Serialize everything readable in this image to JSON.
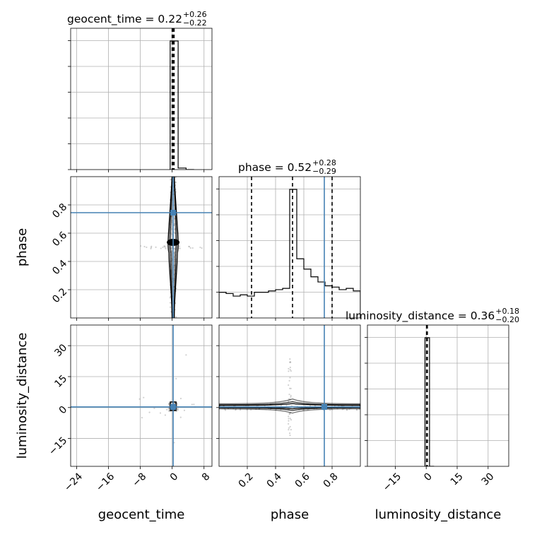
{
  "chart_data": {
    "type": "scatter",
    "style": {
      "grid": true,
      "truth_color": "#4682b4",
      "hist_color": "#000000",
      "sample_color": "#9a9a9a"
    },
    "parameters": [
      "geocent_time",
      "phase",
      "luminosity_distance"
    ],
    "axis_labels": [
      "geocent_time",
      "phase",
      "luminosity_distance"
    ],
    "ranges": [
      [
        -25.5,
        10
      ],
      [
        0.0,
        1.0
      ],
      [
        -28.5,
        40
      ]
    ],
    "truths": [
      0.25,
      0.745,
      0.3
    ],
    "ticks": {
      "geocent_time": [
        -24,
        -16,
        -8,
        0,
        8
      ],
      "phase": [
        0.2,
        0.4,
        0.6,
        0.8
      ],
      "luminosity_distance": [
        -15,
        0,
        15,
        30
      ]
    },
    "tick_labels": {
      "geocent_time": [
        "−24",
        "−16",
        "−8",
        "0",
        "8"
      ],
      "phase": [
        "0.2",
        "0.4",
        "0.6",
        "0.8"
      ],
      "luminosity_distance": [
        "−15",
        "0",
        "15",
        "30"
      ]
    },
    "diag_titles": [
      {
        "prefix": "geocent_time = 0.22",
        "plus": "+0.26",
        "minus": "−0.22"
      },
      {
        "prefix": "phase = 0.52",
        "plus": "+0.28",
        "minus": "−0.29"
      },
      {
        "prefix": "luminosity_distance = 0.36",
        "plus": "+0.18",
        "minus": "−0.20"
      }
    ],
    "quantiles": [
      [
        0.0,
        0.22,
        0.48
      ],
      [
        0.23,
        0.52,
        0.8
      ],
      [
        0.16,
        0.36,
        0.54
      ]
    ],
    "histograms": [
      {
        "edges": [
          -0.5,
          1.5,
          3.5,
          5.5
        ],
        "counts": [
          1.0,
          0.012,
          0.0
        ]
      },
      {
        "edges": [
          0.0,
          0.05,
          0.1,
          0.15,
          0.2,
          0.25,
          0.3,
          0.35,
          0.4,
          0.45,
          0.5,
          0.55,
          0.6,
          0.65,
          0.7,
          0.75,
          0.8,
          0.85,
          0.9,
          0.95,
          1.0
        ],
        "counts": [
          0.2,
          0.19,
          0.17,
          0.18,
          0.17,
          0.2,
          0.2,
          0.21,
          0.22,
          0.23,
          1.0,
          0.46,
          0.38,
          0.32,
          0.28,
          0.25,
          0.24,
          0.22,
          0.23,
          0.21
        ]
      },
      {
        "edges": [
          -0.6,
          1.6,
          3.8
        ],
        "counts": [
          1.0,
          0.0
        ]
      }
    ]
  }
}
